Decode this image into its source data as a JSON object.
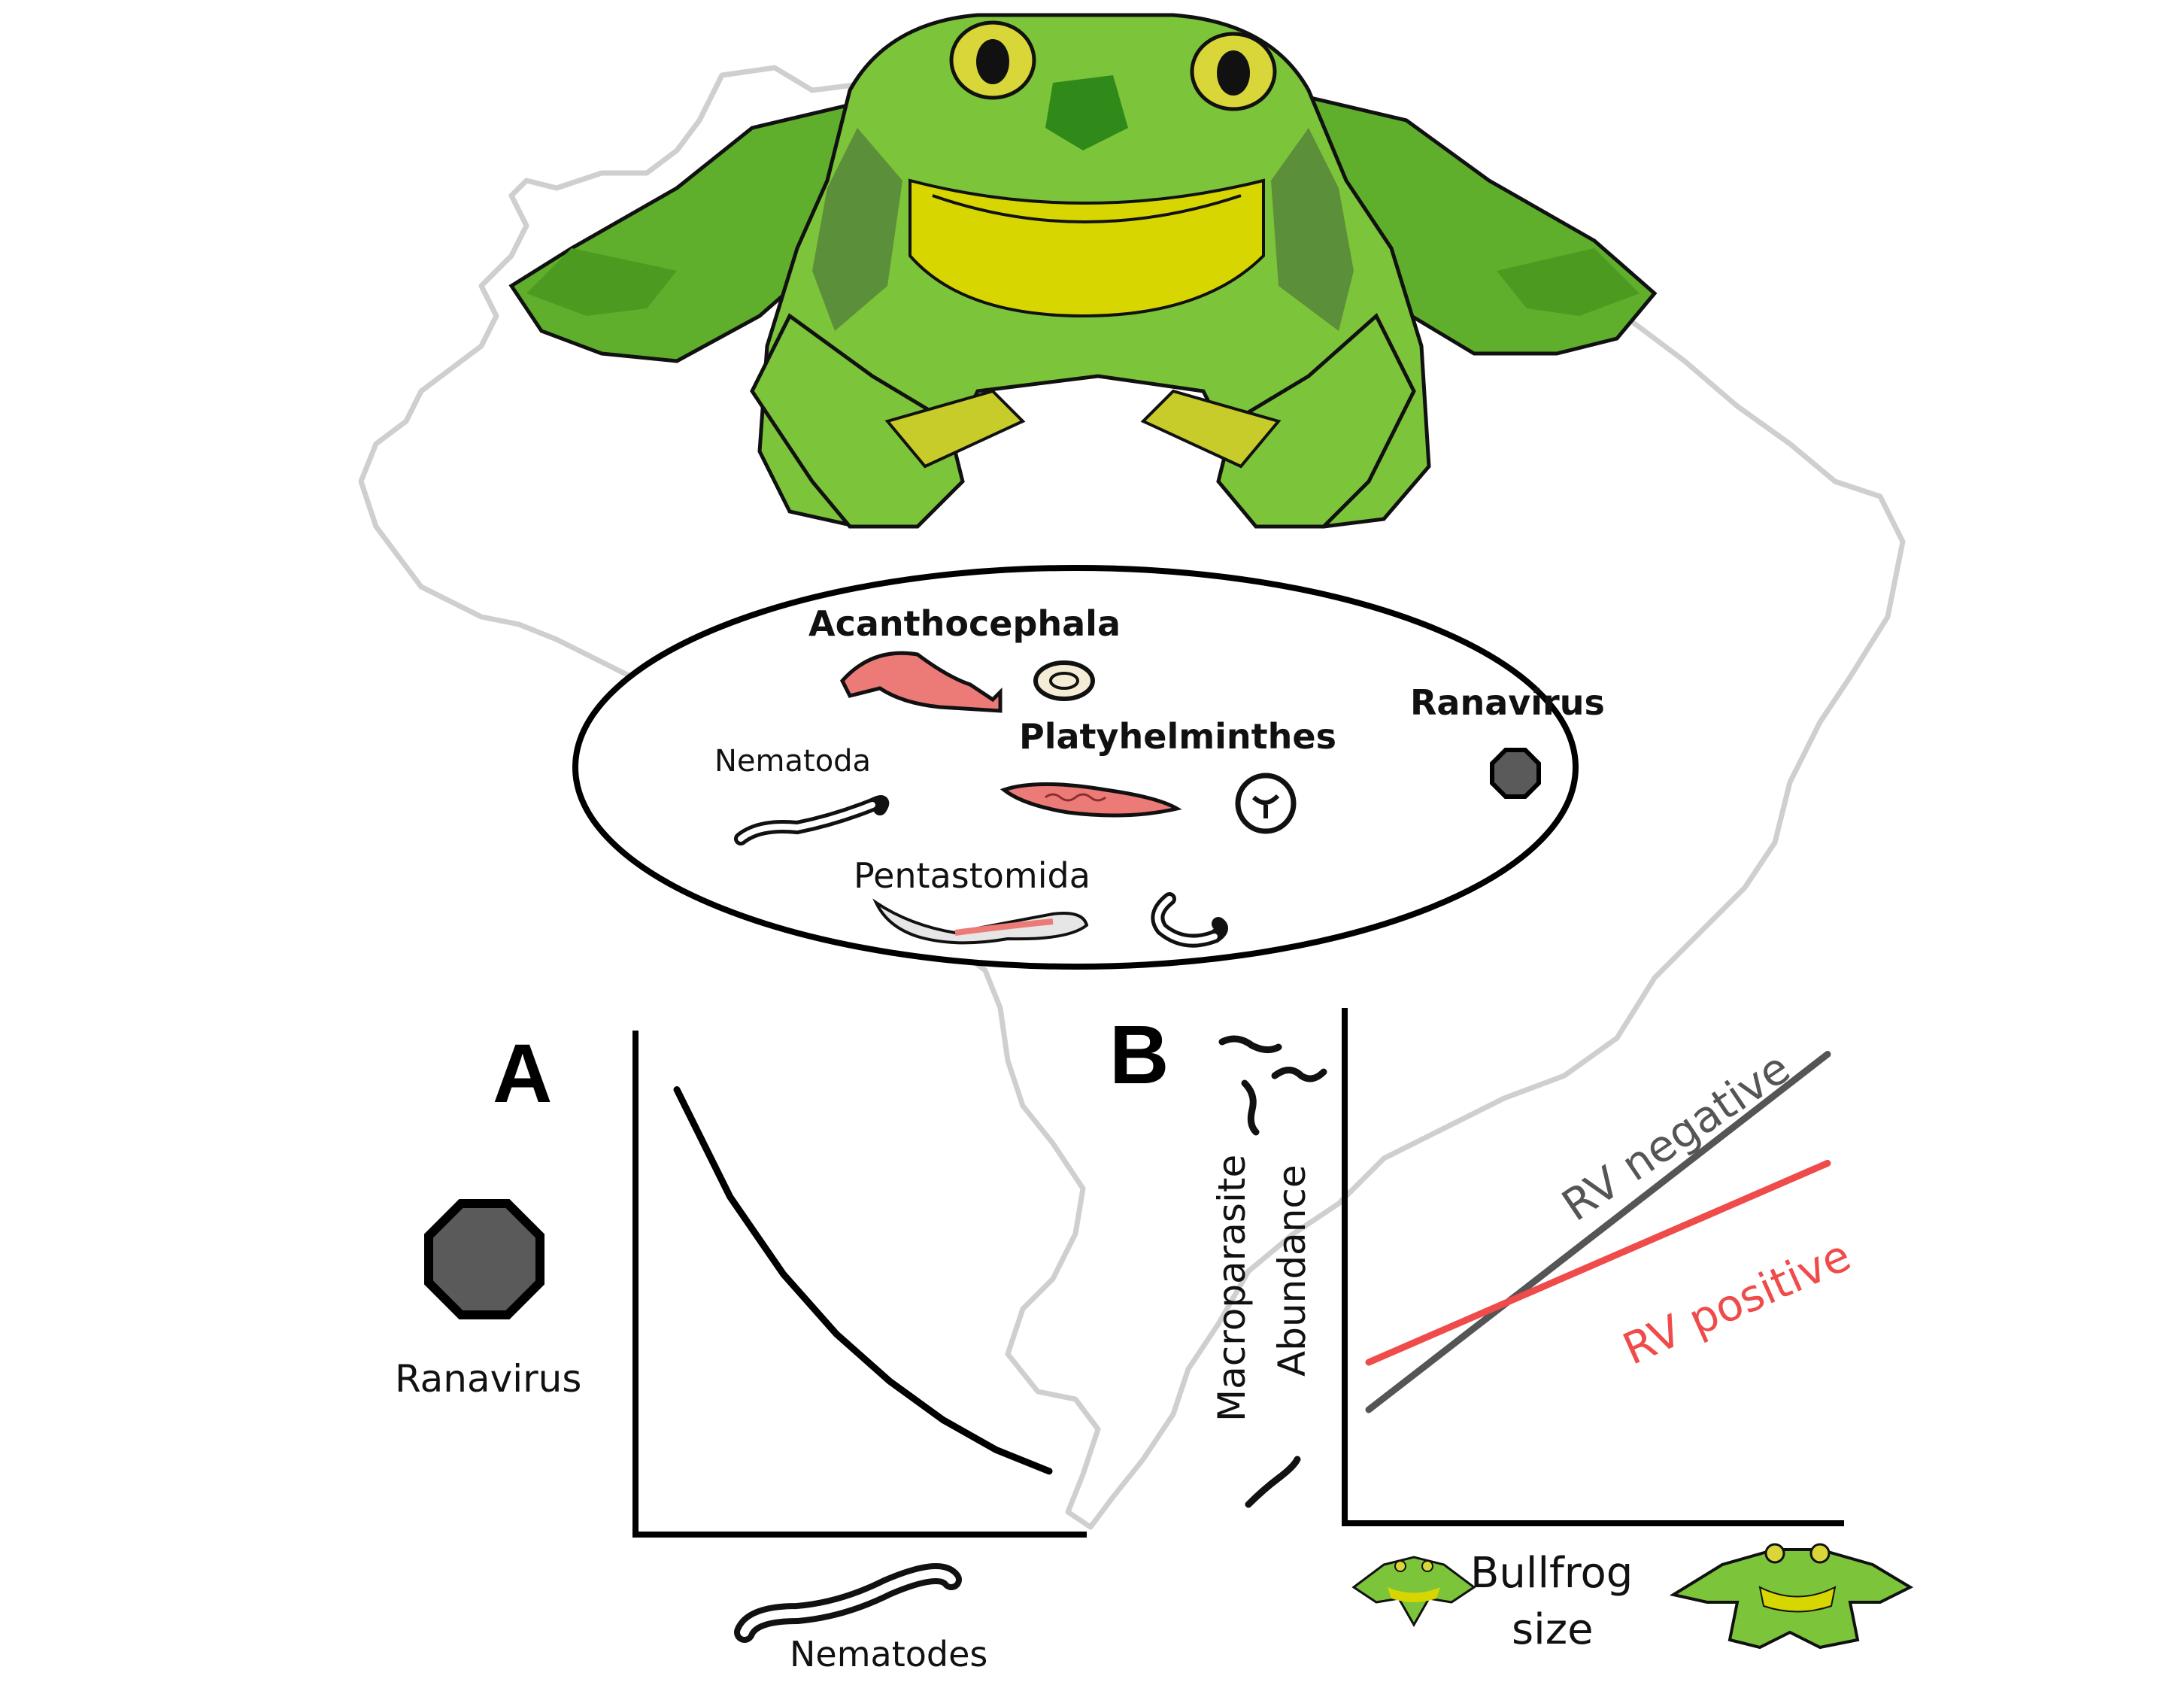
{
  "parasites": {
    "acanthocephala": "Acanthocephala",
    "nematoda": "Nematoda",
    "platyhelminthes": "Platyhelminthes",
    "pentastomida": "Pentastomida",
    "ranavirus": "Ranavirus"
  },
  "panel_a": {
    "letter": "A",
    "y_label": "Ranavirus",
    "x_label": "Nematodes"
  },
  "panel_b": {
    "letter": "B",
    "y_label_line1": "Macroparasite",
    "y_label_line2": "Abundance",
    "x_label_line1": "Bullfrog",
    "x_label_line2": "size",
    "series_negative": "RV negative",
    "series_positive": "RV positive"
  },
  "colors": {
    "frog_light": "#7cc43a",
    "frog_dark": "#3f8f1c",
    "frog_yellow": "#d7d600",
    "map_outline": "#cfcfcf",
    "virus": "#5a5a5a",
    "rv_negative": "#555555",
    "rv_positive": "#f04b4b",
    "worm_pink": "#ec7b78"
  },
  "chart_data": [
    {
      "type": "line",
      "panel": "A",
      "xlabel": "Nematodes",
      "ylabel": "Ranavirus",
      "series": [
        {
          "values": [
            0.95,
            0.7,
            0.52,
            0.38,
            0.27,
            0.18,
            0.11,
            0.06
          ]
        }
      ],
      "x": [
        0,
        1,
        2,
        3,
        4,
        5,
        6,
        7
      ]
    },
    {
      "type": "line",
      "panel": "B",
      "xlabel": "Bullfrog size",
      "ylabel": "Macroparasite Abundance",
      "x": [
        0,
        1
      ],
      "series": [
        {
          "name": "RV negative",
          "values": [
            0.2,
            0.95
          ]
        },
        {
          "name": "RV positive",
          "values": [
            0.3,
            0.72
          ]
        }
      ]
    }
  ]
}
